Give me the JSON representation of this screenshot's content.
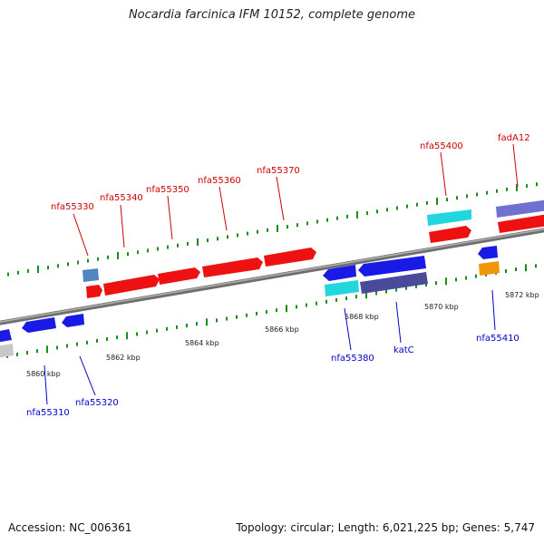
{
  "title": "Nocardia farcinica IFM 10152, complete genome",
  "footer": {
    "accession": "Accession: NC_006361",
    "summary": "Topology: circular; Length: 6,021,225 bp; Genes: 5,747"
  },
  "scale_labels": [
    "5860 kbp",
    "5862 kbp",
    "5864 kbp",
    "5866 kbp",
    "5868 kbp",
    "5870 kbp",
    "5872 kbp"
  ],
  "gene_labels_top": [
    "nfa55330",
    "nfa55340",
    "nfa55350",
    "nfa55360",
    "nfa55370",
    "nfa55400",
    "fadA12"
  ],
  "gene_labels_bottom": [
    "nfa55310",
    "nfa55320",
    "nfa55380",
    "katC",
    "nfa55410"
  ],
  "colors": {
    "backbone": "#8c8c8c",
    "tick": "#1a8c1a",
    "forward_gene": "#ee1111",
    "reverse_gene": "#1a1ae6",
    "cyan_gene": "#22d6e0",
    "navy_gene": "#4a4a9a",
    "purple_gene": "#7070d0",
    "orange_gene": "#f0960a",
    "grey_gene": "#c8c8c8",
    "steel_gene": "#4f85c0",
    "top_label": "#cc0000",
    "bottom_label": "#0000cc"
  }
}
